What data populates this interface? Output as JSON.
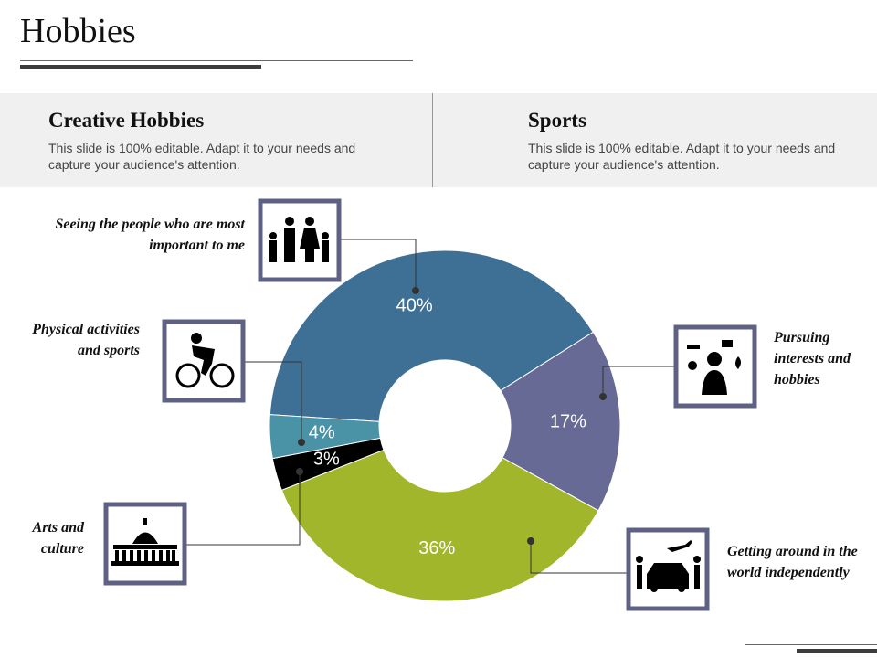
{
  "title": "Hobbies",
  "panels": [
    {
      "heading": "Creative Hobbies",
      "text": "This slide is 100% editable. Adapt it to your needs and capture your audience's attention."
    },
    {
      "heading": "Sports",
      "text": "This slide is 100% editable. Adapt it to your needs and capture your audience's attention."
    }
  ],
  "chart_data": {
    "type": "pie",
    "categories": [
      "Seeing the people who are most important to me",
      "Pursuing interests and hobbies",
      "Getting around in the world independently",
      "Arts and culture",
      "Physical activities and sports"
    ],
    "values": [
      40,
      17,
      36,
      3,
      4
    ],
    "value_labels": [
      "40%",
      "17%",
      "36%",
      "3%",
      "4%"
    ],
    "colors": [
      "#3e7096",
      "#666a94",
      "#a2b62c",
      "#000000",
      "#4a93a7"
    ]
  }
}
